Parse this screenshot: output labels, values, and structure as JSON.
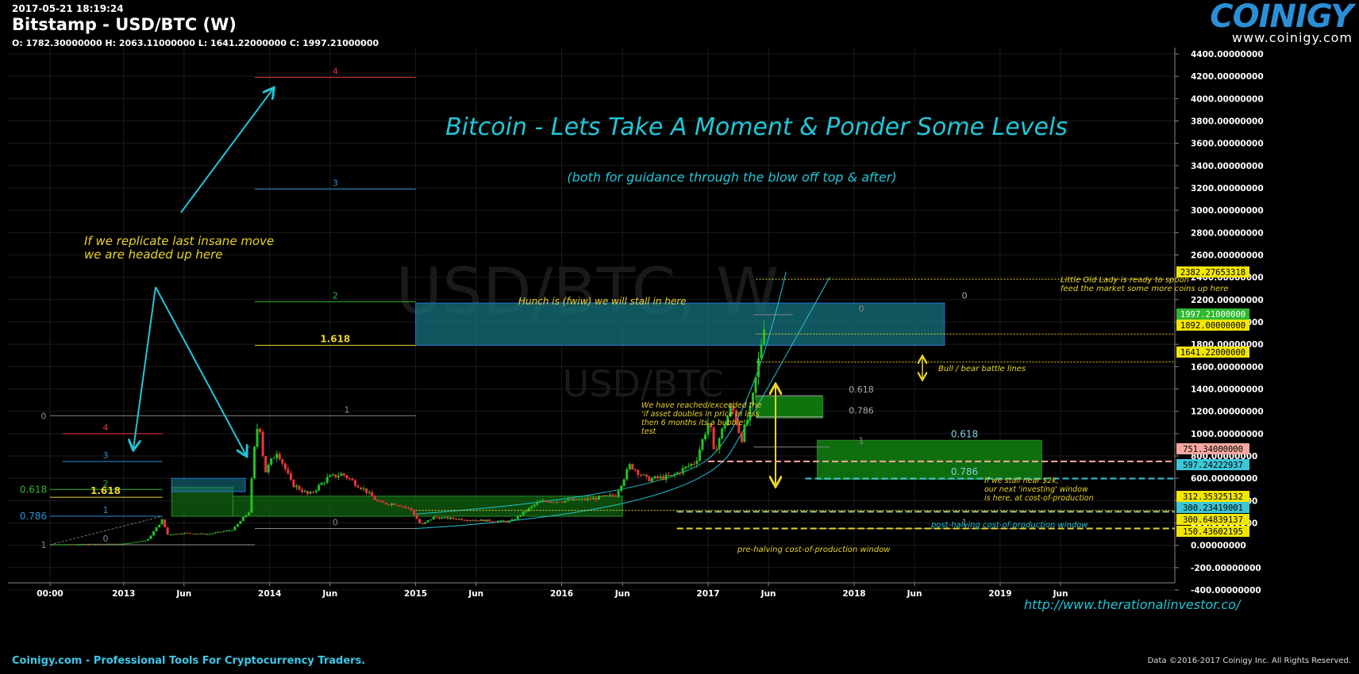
{
  "header": {
    "timestamp": "2017-05-21 18:19:24",
    "title": "Bitstamp - USD/BTC (W)",
    "ohlc": "O: 1782.30000000 H: 2063.11000000 L: 1641.22000000 C: 1997.21000000"
  },
  "logo": {
    "text": "COINIGY",
    "url": "www.coinigy.com"
  },
  "footer": {
    "left": "Coinigy.com - Professional Tools For Cryptocurrency Traders.",
    "right": "Data ©2016-2017 Coinigy Inc. All Rights Reserved."
  },
  "colors": {
    "background": "#000000",
    "up_candle": "#22c222",
    "down_candle": "#e8373b",
    "annotation_cyan": "#21c6d6",
    "annotation_yellow": "#e8d32a",
    "box_teal": "#15737e",
    "box_green": "#0f6a10"
  },
  "chart_data": {
    "type": "candlestick",
    "watermark": [
      "USD/BTC, W",
      "USD/BTC"
    ],
    "y_ticks": [
      -400,
      -200,
      0,
      200,
      400,
      600,
      800,
      1000,
      1200,
      1400,
      1600,
      1800,
      2000,
      2200,
      2400,
      2600,
      2800,
      3000,
      3200,
      3400,
      3600,
      3800,
      4000,
      4200,
      4400
    ],
    "y_tick_labels": [
      "-400.00000000",
      "-200.00000000",
      "0.00000000",
      "200.00000000",
      "400.00000000",
      "600.00000000",
      "800.00000000",
      "1000.00000000",
      "1200.00000000",
      "1400.00000000",
      "1600.00000000",
      "1800.00000000",
      "2000.00000000",
      "2200.00000000",
      "2400.00000000",
      "2600.00000000",
      "2800.00000000",
      "3000.00000000",
      "3200.00000000",
      "3400.00000000",
      "3600.00000000",
      "3800.00000000",
      "4000.00000000",
      "4200.00000000",
      "4400.00000000"
    ],
    "x_labels": [
      "00:00",
      "2013",
      "Jun",
      "2014",
      "Jun",
      "2015",
      "Jun",
      "2016",
      "Jun",
      "2017",
      "Jun",
      "2018",
      "Jun",
      "2019",
      "Jun"
    ],
    "x_label_dates": [
      "2012-07-01",
      "2013-01-01",
      "2013-06-01",
      "2014-01-01",
      "2014-06-01",
      "2015-01-01",
      "2015-06-01",
      "2016-01-01",
      "2016-06-01",
      "2017-01-01",
      "2017-06-01",
      "2018-01-01",
      "2018-06-01",
      "2019-01-01",
      "2019-06-01"
    ],
    "price_tags": [
      {
        "label": "2382.27653318",
        "value": 2382.28,
        "bg": "#f2e600",
        "fg": "#000"
      },
      {
        "label": "1997.21000000",
        "value": 1997.21,
        "bg": "#2eb82e",
        "fg": "#fff"
      },
      {
        "label": "1892.00000000",
        "value": 1892,
        "bg": "#f2e600",
        "fg": "#000"
      },
      {
        "label": "1641.22000000",
        "value": 1641.22,
        "bg": "#f2e600",
        "fg": "#000"
      },
      {
        "label": "751.34000000",
        "value": 751.34,
        "bg": "#f7a8a0",
        "fg": "#000"
      },
      {
        "label": "597.24222937",
        "value": 597.24,
        "bg": "#3cc6d6",
        "fg": "#000"
      },
      {
        "label": "312.35325132",
        "value": 312.35,
        "bg": "#f2e600",
        "fg": "#000"
      },
      {
        "label": "300.23419001",
        "value": 300.23,
        "bg": "#3cc6d6",
        "fg": "#000"
      },
      {
        "label": "300.64839137",
        "value": 300.65,
        "bg": "#f2e600",
        "fg": "#000"
      },
      {
        "label": "150.43602195",
        "value": 150.44,
        "bg": "#f2e600",
        "fg": "#000"
      }
    ],
    "weekly_close_path": [
      [
        "2012-07-01",
        7
      ],
      [
        "2012-10-01",
        12
      ],
      [
        "2013-01-01",
        14
      ],
      [
        "2013-03-01",
        45
      ],
      [
        "2013-04-08",
        230
      ],
      [
        "2013-04-20",
        95
      ],
      [
        "2013-06-01",
        110
      ],
      [
        "2013-08-01",
        100
      ],
      [
        "2013-10-01",
        140
      ],
      [
        "2013-11-10",
        300
      ],
      [
        "2013-11-25",
        900
      ],
      [
        "2013-12-05",
        1150
      ],
      [
        "2013-12-20",
        650
      ],
      [
        "2014-01-20",
        850
      ],
      [
        "2014-02-25",
        550
      ],
      [
        "2014-04-10",
        450
      ],
      [
        "2014-05-25",
        600
      ],
      [
        "2014-07-01",
        640
      ],
      [
        "2014-08-25",
        500
      ],
      [
        "2014-10-01",
        380
      ],
      [
        "2014-11-15",
        370
      ],
      [
        "2014-12-20",
        320
      ],
      [
        "2015-01-14",
        180
      ],
      [
        "2015-02-15",
        250
      ],
      [
        "2015-04-01",
        240
      ],
      [
        "2015-06-01",
        225
      ],
      [
        "2015-08-25",
        210
      ],
      [
        "2015-11-05",
        390
      ],
      [
        "2016-01-15",
        400
      ],
      [
        "2016-03-15",
        415
      ],
      [
        "2016-05-15",
        450
      ],
      [
        "2016-06-20",
        720
      ],
      [
        "2016-08-01",
        590
      ],
      [
        "2016-10-01",
        615
      ],
      [
        "2016-12-01",
        750
      ],
      [
        "2017-01-04",
        1130
      ],
      [
        "2017-01-15",
        830
      ],
      [
        "2017-03-01",
        1250
      ],
      [
        "2017-03-25",
        950
      ],
      [
        "2017-04-20",
        1250
      ],
      [
        "2017-05-05",
        1600
      ],
      [
        "2017-05-21",
        1997
      ]
    ]
  },
  "annotations": {
    "main_title": "Bitcoin - Lets Take A Moment & Ponder Some Levels",
    "subtitle": "(both for guidance through the blow off top & after)",
    "replicate_note_1": "If we replicate last insane move",
    "replicate_note_2": "we are headed up here",
    "hunch": "Hunch is (fwiw) we will stall in here",
    "old_lady_1": "Little Old Lady is ready to spoon",
    "old_lady_2": "feed the market some more coins up here",
    "bull_bear": "Bull / bear battle lines",
    "bubble_1": "We have reached/exceeded the",
    "bubble_2": "'if asset doubles in price in less",
    "bubble_3": "then 6 months its a bubble'",
    "bubble_4": "test",
    "stall_1": "If we stall near $2k,",
    "stall_2": "our next 'investing' window",
    "stall_3": "is here, at cost-of-production",
    "post_halving": "post-halving cost-of-production window",
    "pre_halving": "pre-halving cost-of-production window",
    "website": "http://www.therationalinvestor.co/",
    "fib_labels": {
      "f4": "4",
      "f3": "3",
      "f2": "2",
      "f1618": "1.618",
      "f1": "1",
      "f0": "0",
      "f0618": "0.618",
      "f0786": "0.786"
    }
  }
}
